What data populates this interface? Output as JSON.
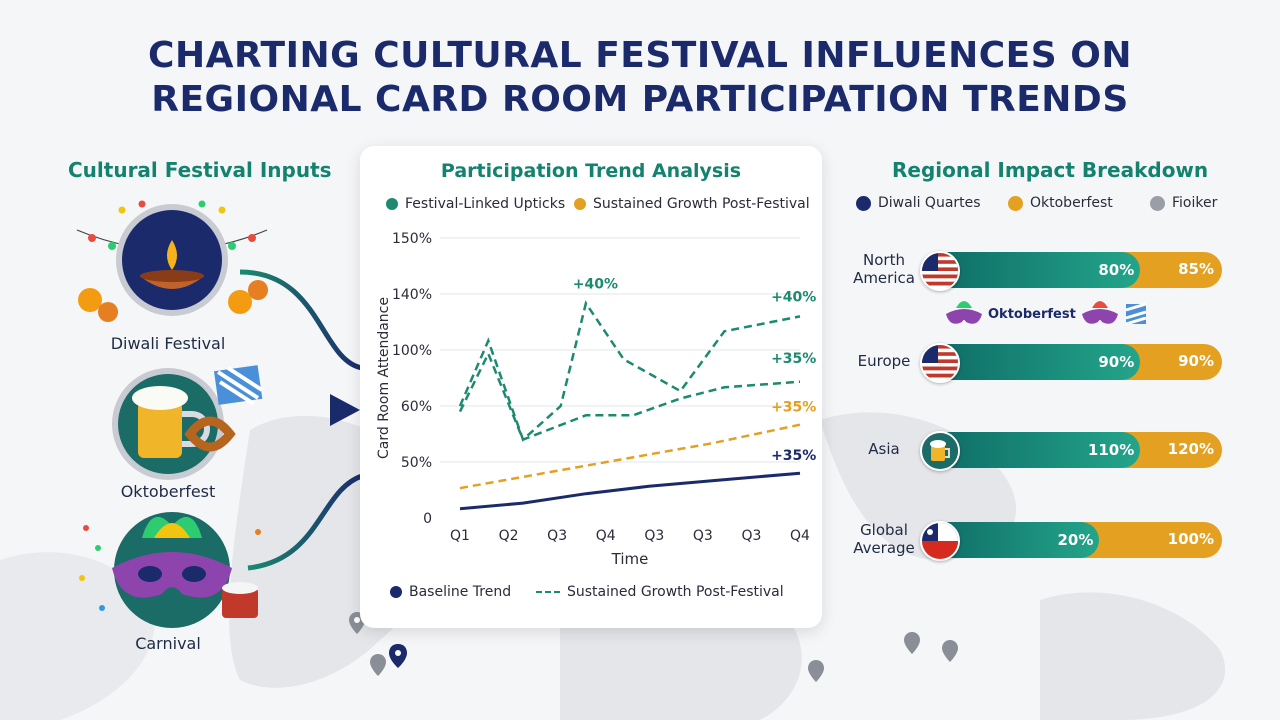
{
  "title_line1": "CHARTING CULTURAL FESTIVAL INFLUENCES ON",
  "title_line2": "REGIONAL CARD ROOM PARTICIPATION TRENDS",
  "left": {
    "heading": "Cultural Festival Inputs",
    "festivals": [
      {
        "label": "Diwali Festival",
        "icon": "diya-lamp-icon"
      },
      {
        "label": "Oktoberfest",
        "icon": "beer-mug-pretzel-icon"
      },
      {
        "label": "Carnival",
        "icon": "carnival-mask-icon"
      }
    ]
  },
  "center": {
    "heading": "Participation Trend Analysis",
    "legend_top": [
      "Festival-Linked Upticks",
      "Sustained Growth Post-Festival"
    ],
    "legend_bottom": [
      "Baseline Trend",
      "Sustained Growth Post-Festival"
    ],
    "colors": {
      "teal": "#1b8a6f",
      "orange": "#e3a021",
      "navy": "#1b2a6b"
    }
  },
  "chart_data": {
    "type": "line",
    "xlabel": "Time",
    "ylabel": "Card Room Attendance",
    "y_ticks": [
      "0",
      "50%",
      "60%",
      "100%",
      "140%",
      "150%"
    ],
    "categories": [
      "Q1",
      "Q2",
      "Q3",
      "Q4",
      "Q3",
      "Q3",
      "Q3",
      "Q4"
    ],
    "series": [
      {
        "name": "Festival-Linked Upticks",
        "style": "dashed",
        "color": "#1b8a6f",
        "points": [
          [
            0,
            60
          ],
          [
            0.45,
            95
          ],
          [
            1,
            42
          ],
          [
            1.6,
            60
          ],
          [
            2,
            115
          ],
          [
            2.6,
            85
          ],
          [
            3.5,
            68
          ],
          [
            4.2,
            100
          ],
          [
            5.4,
            108
          ]
        ]
      },
      {
        "name": "Festival-Linked Upticks",
        "style": "dashed",
        "color": "#1b8a6f",
        "points": [
          [
            0,
            57
          ],
          [
            0.45,
            88
          ],
          [
            1,
            42
          ],
          [
            2,
            55
          ],
          [
            2.75,
            55
          ],
          [
            3.5,
            64
          ],
          [
            4.2,
            70
          ],
          [
            5.4,
            73
          ]
        ]
      },
      {
        "name": "Sustained Growth Post-Festival",
        "style": "dashed",
        "color": "#e3a021",
        "points": [
          [
            0,
            16
          ],
          [
            1,
            22
          ],
          [
            2,
            28
          ],
          [
            3,
            34
          ],
          [
            4,
            40
          ],
          [
            5.4,
            50
          ]
        ]
      },
      {
        "name": "Baseline Trend",
        "style": "solid",
        "color": "#1b2a6b",
        "points": [
          [
            0,
            5
          ],
          [
            1,
            8
          ],
          [
            2,
            13
          ],
          [
            3,
            17
          ],
          [
            4,
            20
          ],
          [
            5.4,
            24
          ]
        ]
      }
    ],
    "annotations": [
      {
        "text": "+40%",
        "color": "#1b8a6f",
        "x": 2.15,
        "y": 123
      },
      {
        "text": "+40%",
        "color": "#1b8a6f",
        "x": 5.3,
        "y": 116
      },
      {
        "text": "+35%",
        "color": "#1b8a6f",
        "x": 5.3,
        "y": 83
      },
      {
        "text": "+35%",
        "color": "#e3a021",
        "x": 5.3,
        "y": 57
      },
      {
        "text": "+35%",
        "color": "#1b2a6b",
        "x": 5.3,
        "y": 31
      }
    ]
  },
  "right": {
    "heading": "Regional Impact Breakdown",
    "legend": [
      {
        "label": "Diwali Quartes",
        "color": "#1b2a6b"
      },
      {
        "label": "Oktoberfest",
        "color": "#e3a021"
      },
      {
        "label": "Fioiker",
        "color": "#9a9ea6"
      }
    ],
    "oktoberfest_banner": "Oktoberfest",
    "regions": [
      {
        "label_lines": [
          "North",
          "America"
        ],
        "flag": "usa-flag-icon",
        "teal_value": "80%",
        "orange_value": "85%",
        "teal_fraction": 0.72
      },
      {
        "label_lines": [
          "Europe"
        ],
        "flag": "usa-flag-icon",
        "teal_value": "90%",
        "orange_value": "90%",
        "teal_fraction": 0.72
      },
      {
        "label_lines": [
          "Asia"
        ],
        "flag": "beer-mug-icon",
        "teal_value": "110%",
        "orange_value": "120%",
        "teal_fraction": 0.72
      },
      {
        "label_lines": [
          "Global",
          "Average"
        ],
        "flag": "chile-flag-icon",
        "teal_value": "20%",
        "orange_value": "100%",
        "teal_fraction": 0.58
      }
    ]
  }
}
